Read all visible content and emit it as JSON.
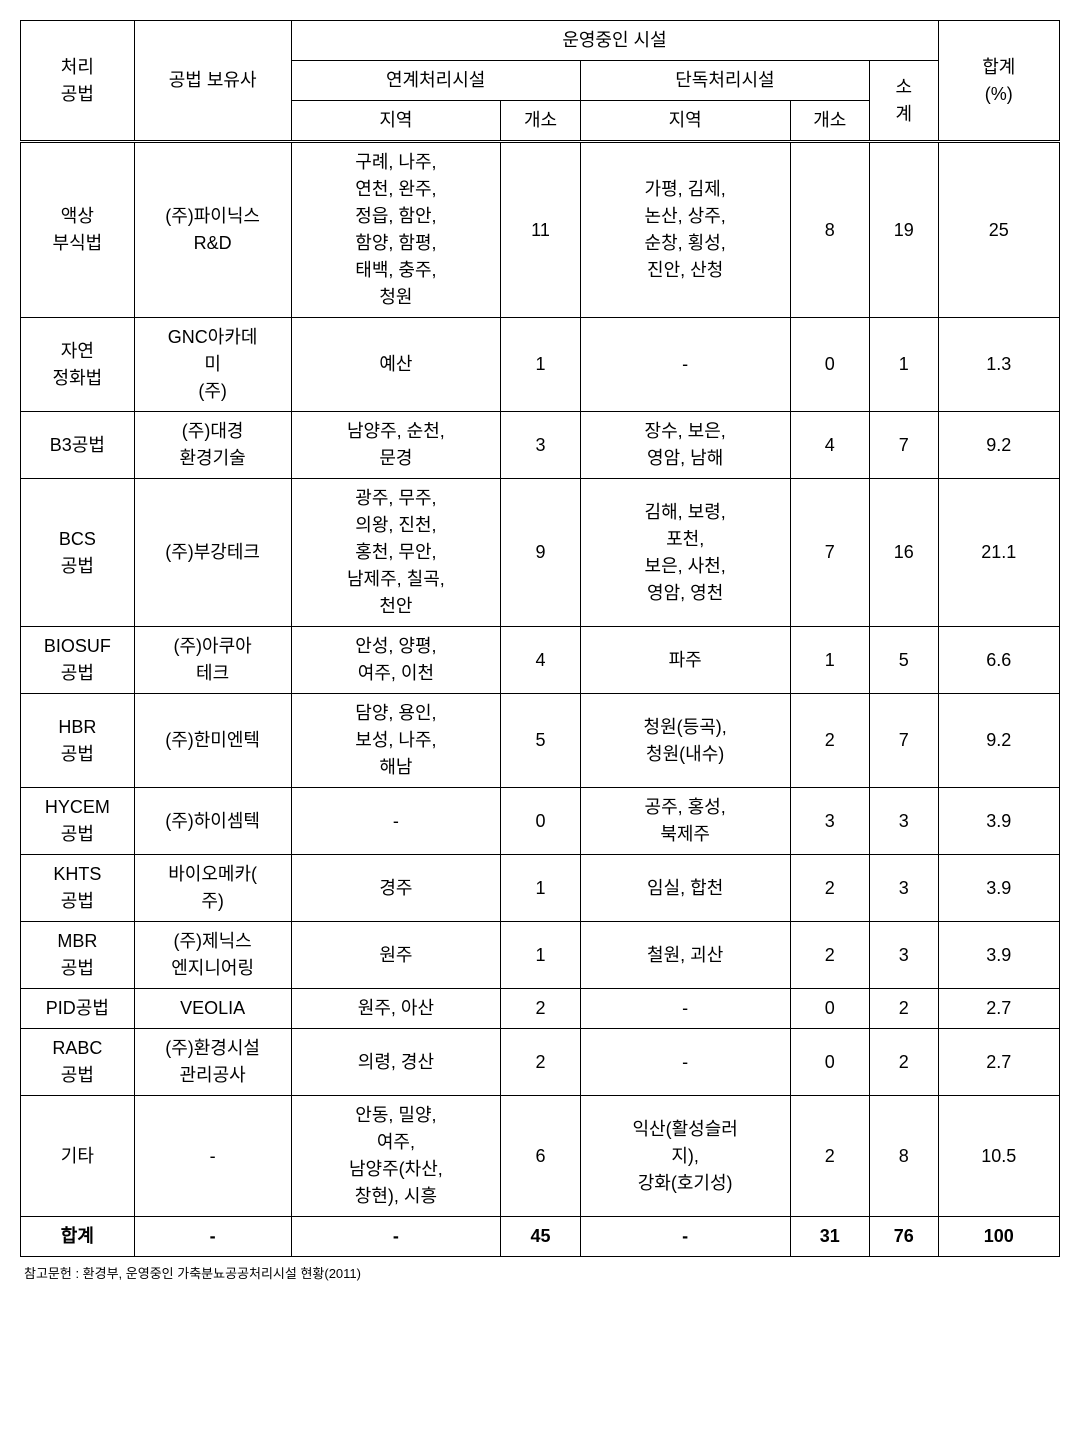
{
  "headers": {
    "method": "처리\n공법",
    "company": "공법 보유사",
    "facilities": "운영중인 시설",
    "linked": "연계처리시설",
    "standalone": "단독처리시설",
    "region": "지역",
    "count": "개소",
    "subtotal": "소\n계",
    "total": "합계\n(%)"
  },
  "rows": [
    {
      "method": "액상\n부식법",
      "company": "(주)파이닉스\nR&D",
      "region1": "구례, 나주,\n연천, 완주,\n정읍, 함안,\n함양, 함평,\n태백, 충주,\n청원",
      "count1": "11",
      "region2": "가평, 김제,\n논산, 상주,\n순창, 횡성,\n진안, 산청",
      "count2": "8",
      "subtotal": "19",
      "total": "25"
    },
    {
      "method": "자연\n정화법",
      "company": "GNC아카데\n미\n(주)",
      "region1": "예산",
      "count1": "1",
      "region2": "-",
      "count2": "0",
      "subtotal": "1",
      "total": "1.3"
    },
    {
      "method": "B3공법",
      "company": "(주)대경\n환경기술",
      "region1": "남양주, 순천,\n문경",
      "count1": "3",
      "region2": "장수, 보은,\n영암, 남해",
      "count2": "4",
      "subtotal": "7",
      "total": "9.2"
    },
    {
      "method": "BCS\n공법",
      "company": "(주)부강테크",
      "region1": "광주, 무주,\n의왕, 진천,\n홍천, 무안,\n남제주, 칠곡,\n천안",
      "count1": "9",
      "region2": "김해, 보령,\n포천,\n보은, 사천,\n영암, 영천",
      "count2": "7",
      "subtotal": "16",
      "total": "21.1"
    },
    {
      "method": "BIOSUF\n공법",
      "company": "(주)아쿠아\n테크",
      "region1": "안성, 양평,\n여주, 이천",
      "count1": "4",
      "region2": "파주",
      "count2": "1",
      "subtotal": "5",
      "total": "6.6"
    },
    {
      "method": "HBR\n공법",
      "company": "(주)한미엔텍",
      "region1": "담양, 용인,\n보성, 나주,\n해남",
      "count1": "5",
      "region2": "청원(등곡),\n청원(내수)",
      "count2": "2",
      "subtotal": "7",
      "total": "9.2"
    },
    {
      "method": "HYCEM\n공법",
      "company": "(주)하이셈텍",
      "region1": "-",
      "count1": "0",
      "region2": "공주, 홍성,\n북제주",
      "count2": "3",
      "subtotal": "3",
      "total": "3.9"
    },
    {
      "method": "KHTS\n공법",
      "company": "바이오메카(\n주)",
      "region1": "경주",
      "count1": "1",
      "region2": "임실, 합천",
      "count2": "2",
      "subtotal": "3",
      "total": "3.9"
    },
    {
      "method": "MBR\n공법",
      "company": "(주)제닉스\n엔지니어링",
      "region1": "원주",
      "count1": "1",
      "region2": "철원, 괴산",
      "count2": "2",
      "subtotal": "3",
      "total": "3.9"
    },
    {
      "method": "PID공법",
      "company": "VEOLIA",
      "region1": "원주, 아산",
      "count1": "2",
      "region2": "-",
      "count2": "0",
      "subtotal": "2",
      "total": "2.7"
    },
    {
      "method": "RABC\n공법",
      "company": "(주)환경시설\n관리공사",
      "region1": "의령, 경산",
      "count1": "2",
      "region2": "-",
      "count2": "0",
      "subtotal": "2",
      "total": "2.7"
    },
    {
      "method": "기타",
      "company": "-",
      "region1": "안동, 밀양,\n여주,\n남양주(차산,\n창현), 시흥",
      "count1": "6",
      "region2": "익산(활성슬러\n지),\n강화(호기성)",
      "count2": "2",
      "subtotal": "8",
      "total": "10.5"
    }
  ],
  "sum": {
    "method": "합계",
    "company": "-",
    "region1": "-",
    "count1": "45",
    "region2": "-",
    "count2": "31",
    "subtotal": "76",
    "total": "100"
  },
  "footnote": "참고문헌 : 환경부, 운영중인 가축분뇨공공처리시설 현황(2011)"
}
